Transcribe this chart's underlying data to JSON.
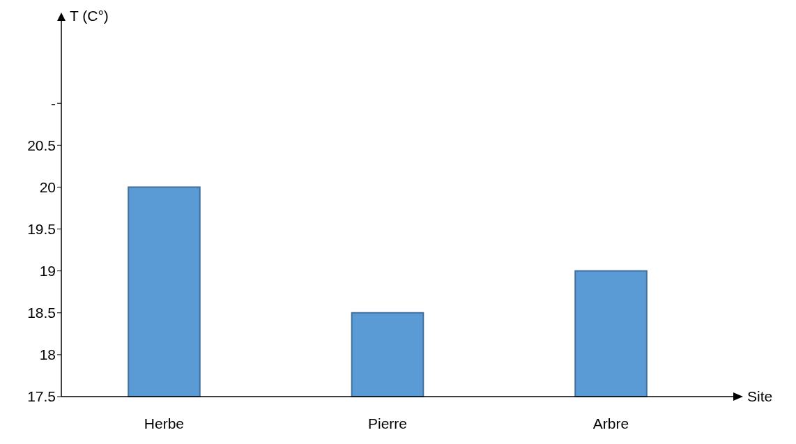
{
  "chart_data": {
    "type": "bar",
    "ylabel": "T (C°)",
    "xlabel": "Site",
    "categories": [
      "Herbe",
      "Pierre",
      "Arbre"
    ],
    "values": [
      20,
      18.5,
      19
    ],
    "color": "#5b9bd5",
    "ylim": [
      17.5,
      22
    ],
    "yticks": [
      17.5,
      18,
      18.5,
      19,
      19.5,
      20,
      20.5,
      {
        "value": 21,
        "label": "-"
      }
    ],
    "grid": false
  }
}
